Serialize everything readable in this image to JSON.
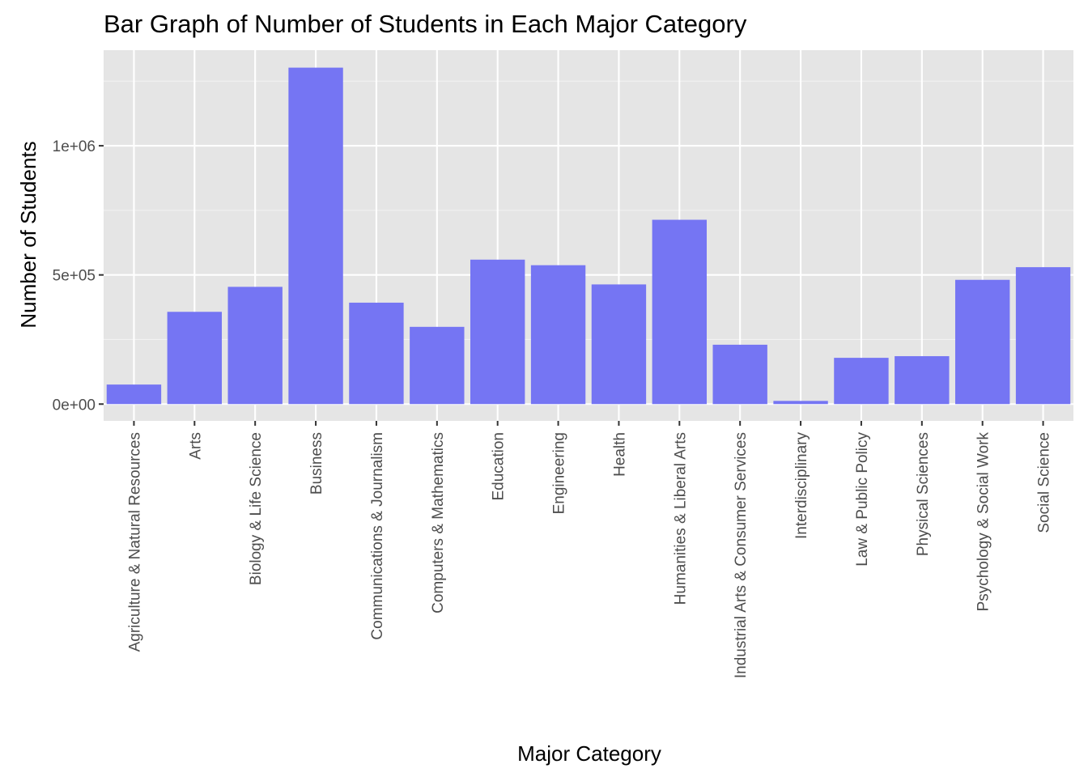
{
  "chart_data": {
    "type": "bar",
    "title": "Bar Graph of Number of Students in Each Major Category",
    "xlabel": "Major Category",
    "ylabel": "Number of Students",
    "categories": [
      "Agriculture & Natural Resources",
      "Arts",
      "Biology & Life Science",
      "Business",
      "Communications & Journalism",
      "Computers & Mathematics",
      "Education",
      "Engineering",
      "Health",
      "Humanities & Liberal Arts",
      "Industrial Arts & Consumer Services",
      "Interdisciplinary",
      "Law & Public Policy",
      "Physical Sciences",
      "Psychology & Social Work",
      "Social Science"
    ],
    "values": [
      75620,
      357130,
      453862,
      1302376,
      392601,
      299008,
      559129,
      537583,
      463230,
      713468,
      229792,
      12296,
      179107,
      185479,
      481007,
      529966
    ],
    "yticks": [
      0,
      500000,
      1000000
    ],
    "ytick_labels": [
      "0e+00",
      "5e+05",
      "1e+06"
    ],
    "ylim": [
      -65000,
      1370000
    ],
    "grid": true,
    "legend": "none",
    "colors": {
      "bar": "#7575F3",
      "panel": "#E5E5E5",
      "grid_major": "#FFFFFF",
      "grid_minor": "#F2F2F2",
      "text": "#000000",
      "tick_text": "#4D4D4D",
      "tick": "#333333"
    }
  }
}
